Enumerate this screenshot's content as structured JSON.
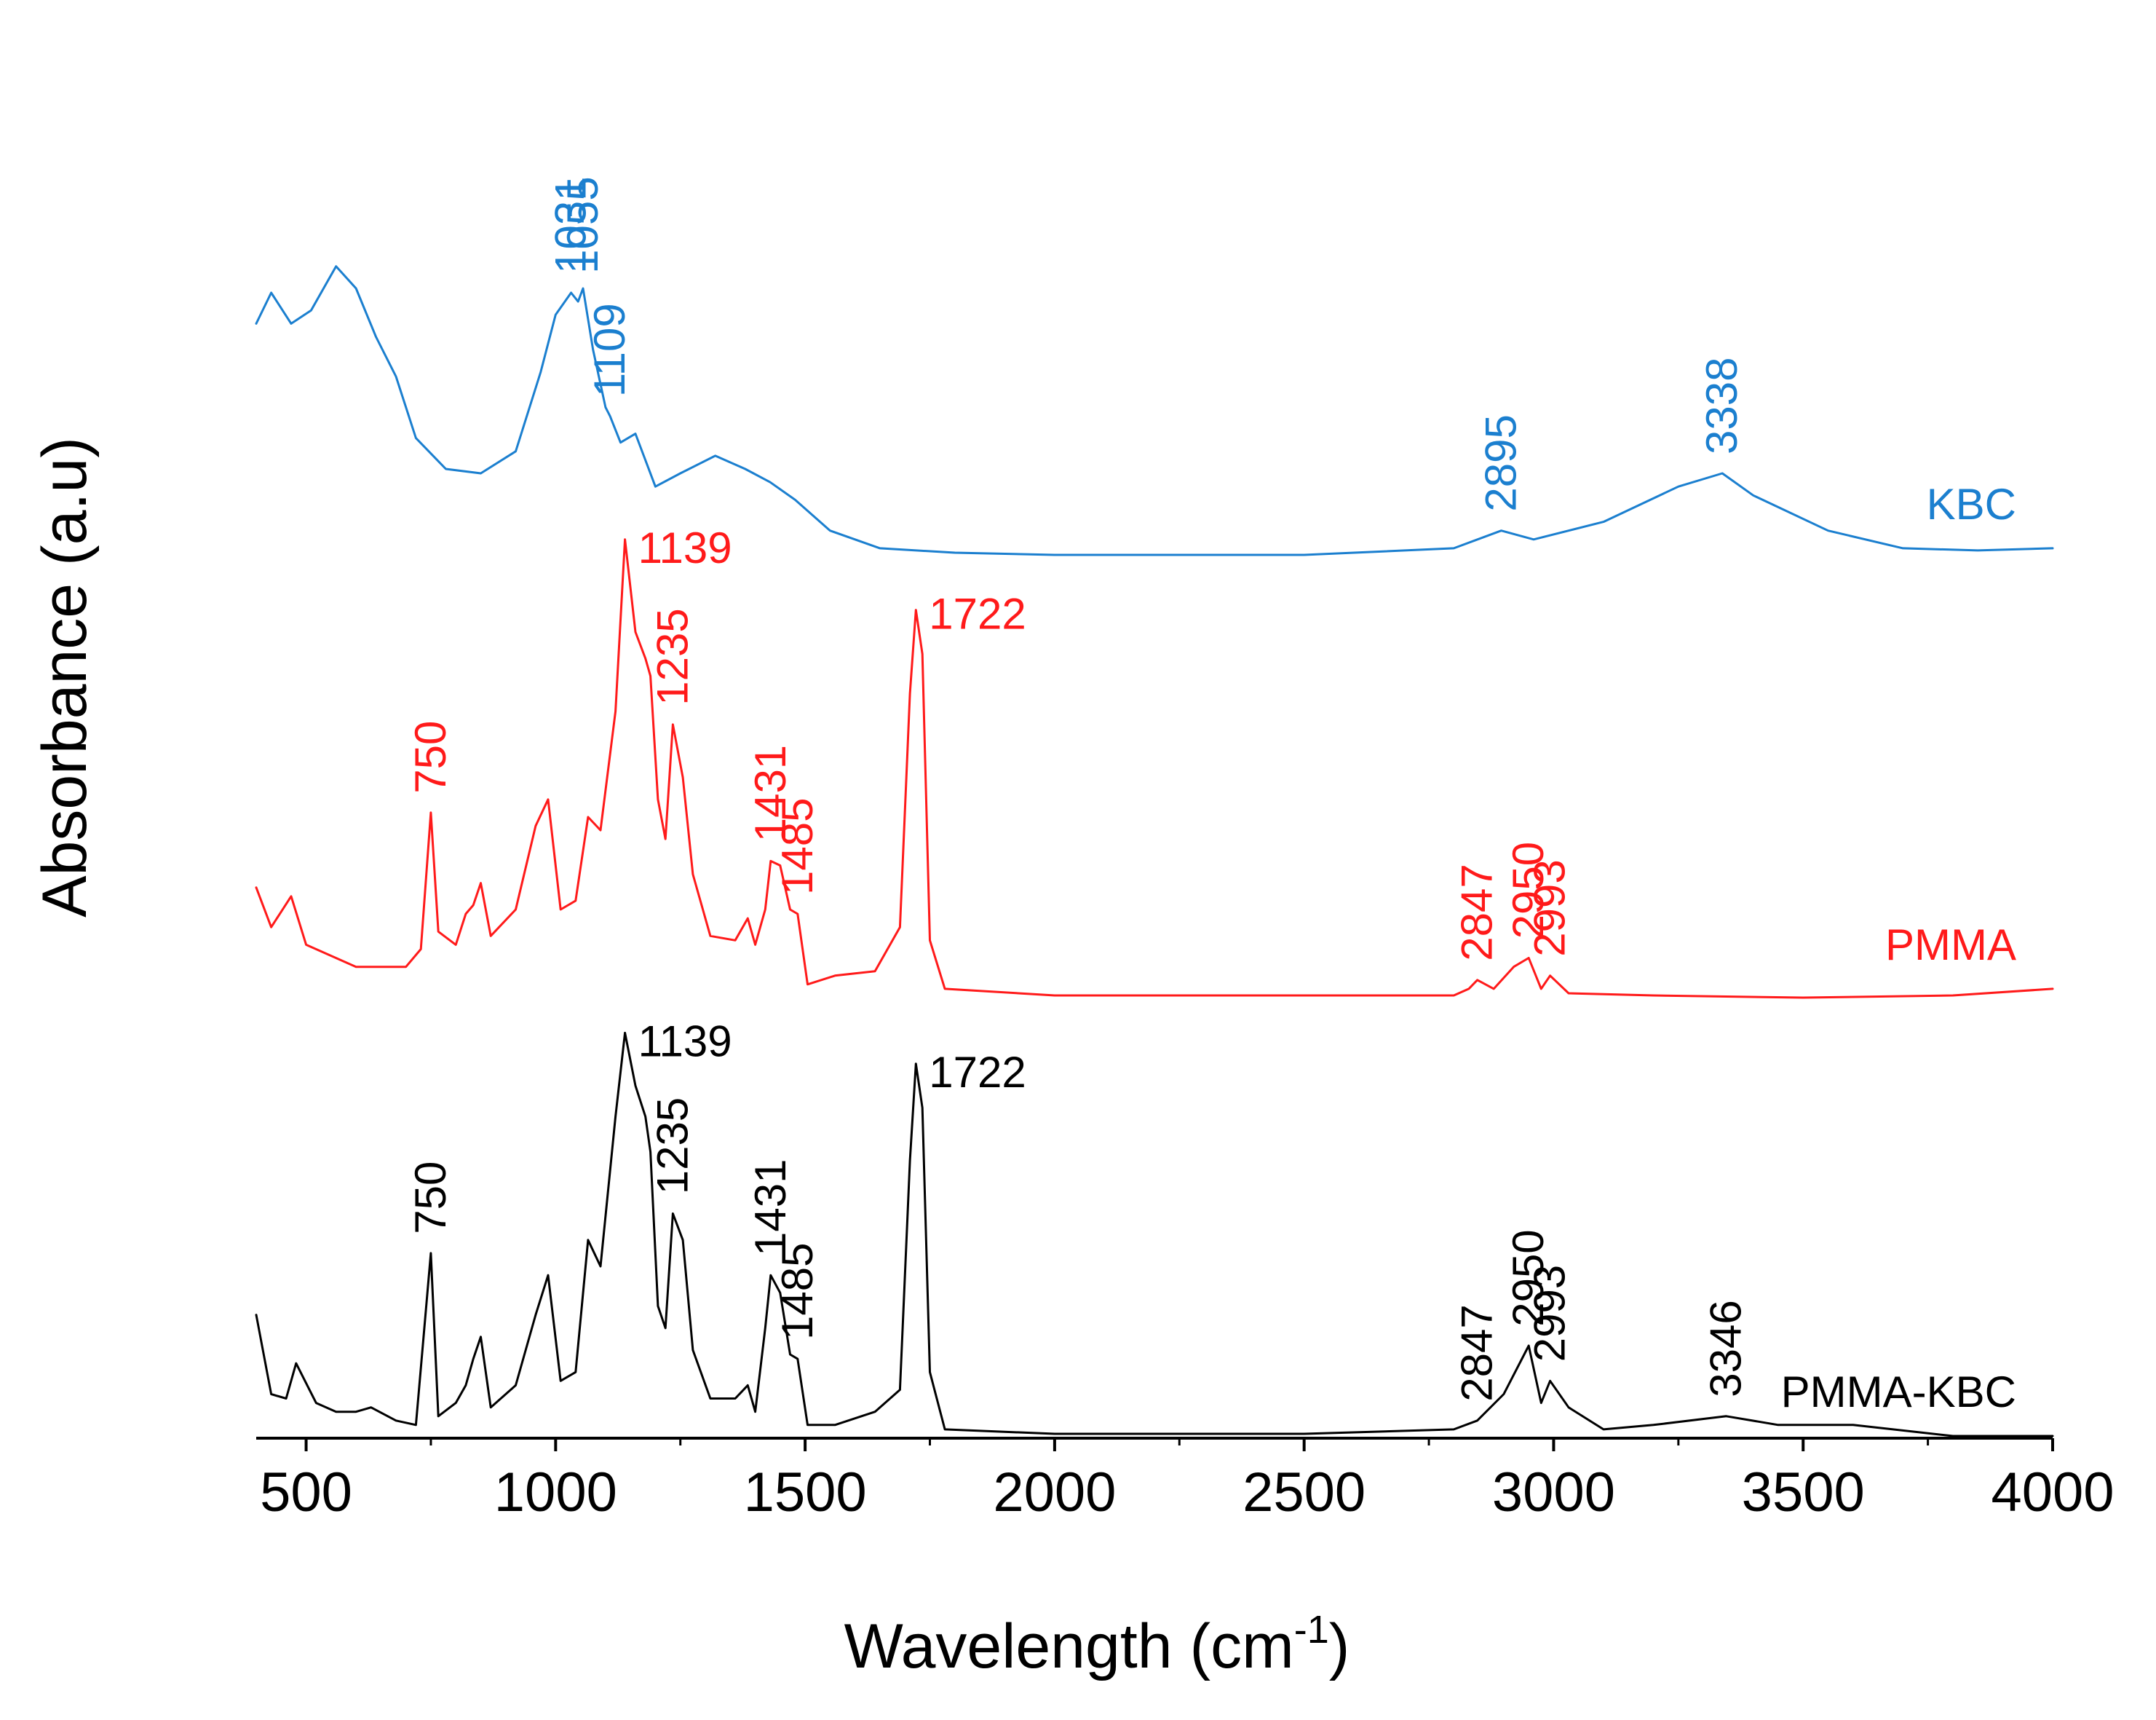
{
  "chart_data": {
    "type": "line",
    "title": "",
    "xlabel": "Wavelength (cm",
    "xlabel_superscript": "-1",
    "xlabel_suffix": ")",
    "ylabel": "Absorbance (a.u)",
    "xlim": [
      400,
      4000
    ],
    "ylim": [
      0,
      3
    ],
    "y_ticks_shown": false,
    "grid": false,
    "legend": "inline labels at right",
    "x_ticks": [
      {
        "value": 500,
        "label": "500"
      },
      {
        "value": 1000,
        "label": "1000"
      },
      {
        "value": 1500,
        "label": "1500"
      },
      {
        "value": 2000,
        "label": "2000"
      },
      {
        "value": 2500,
        "label": "2500"
      },
      {
        "value": 3000,
        "label": "3000"
      },
      {
        "value": 3500,
        "label": "3500"
      },
      {
        "value": 4000,
        "label": "4000"
      }
    ],
    "series": [
      {
        "name": "KBC",
        "label": "KBC",
        "color": "#1b7fcf",
        "points": [
          [
            400,
            2.53
          ],
          [
            430,
            2.6
          ],
          [
            470,
            2.53
          ],
          [
            510,
            2.56
          ],
          [
            560,
            2.66
          ],
          [
            600,
            2.61
          ],
          [
            640,
            2.5
          ],
          [
            680,
            2.41
          ],
          [
            720,
            2.27
          ],
          [
            780,
            2.2
          ],
          [
            850,
            2.19
          ],
          [
            920,
            2.24
          ],
          [
            970,
            2.42
          ],
          [
            1000,
            2.55
          ],
          [
            1031,
            2.6
          ],
          [
            1045,
            2.58
          ],
          [
            1055,
            2.61
          ],
          [
            1075,
            2.47
          ],
          [
            1100,
            2.34
          ],
          [
            1109,
            2.32
          ],
          [
            1130,
            2.26
          ],
          [
            1160,
            2.28
          ],
          [
            1200,
            2.16
          ],
          [
            1250,
            2.19
          ],
          [
            1320,
            2.23
          ],
          [
            1380,
            2.2
          ],
          [
            1430,
            2.17
          ],
          [
            1480,
            2.13
          ],
          [
            1550,
            2.06
          ],
          [
            1650,
            2.02
          ],
          [
            1800,
            2.01
          ],
          [
            2000,
            2.005
          ],
          [
            2500,
            2.005
          ],
          [
            2800,
            2.02
          ],
          [
            2895,
            2.06
          ],
          [
            2960,
            2.04
          ],
          [
            3100,
            2.08
          ],
          [
            3250,
            2.16
          ],
          [
            3338,
            2.19
          ],
          [
            3400,
            2.14
          ],
          [
            3550,
            2.06
          ],
          [
            3700,
            2.02
          ],
          [
            3850,
            2.015
          ],
          [
            4000,
            2.02
          ]
        ]
      },
      {
        "name": "PMMA",
        "label": "PMMA",
        "color": "#ff1a1a",
        "points": [
          [
            400,
            1.25
          ],
          [
            430,
            1.16
          ],
          [
            470,
            1.23
          ],
          [
            500,
            1.12
          ],
          [
            600,
            1.07
          ],
          [
            700,
            1.07
          ],
          [
            730,
            1.11
          ],
          [
            750,
            1.42
          ],
          [
            765,
            1.15
          ],
          [
            800,
            1.12
          ],
          [
            820,
            1.19
          ],
          [
            835,
            1.21
          ],
          [
            850,
            1.26
          ],
          [
            870,
            1.14
          ],
          [
            920,
            1.2
          ],
          [
            960,
            1.39
          ],
          [
            985,
            1.45
          ],
          [
            1010,
            1.2
          ],
          [
            1040,
            1.22
          ],
          [
            1065,
            1.41
          ],
          [
            1090,
            1.38
          ],
          [
            1120,
            1.65
          ],
          [
            1139,
            2.04
          ],
          [
            1160,
            1.83
          ],
          [
            1180,
            1.77
          ],
          [
            1190,
            1.73
          ],
          [
            1205,
            1.45
          ],
          [
            1220,
            1.36
          ],
          [
            1235,
            1.62
          ],
          [
            1255,
            1.5
          ],
          [
            1275,
            1.28
          ],
          [
            1310,
            1.14
          ],
          [
            1360,
            1.13
          ],
          [
            1385,
            1.18
          ],
          [
            1400,
            1.12
          ],
          [
            1420,
            1.2
          ],
          [
            1431,
            1.31
          ],
          [
            1450,
            1.3
          ],
          [
            1470,
            1.2
          ],
          [
            1485,
            1.19
          ],
          [
            1505,
            1.03
          ],
          [
            1560,
            1.05
          ],
          [
            1640,
            1.06
          ],
          [
            1690,
            1.16
          ],
          [
            1710,
            1.69
          ],
          [
            1722,
            1.88
          ],
          [
            1735,
            1.78
          ],
          [
            1750,
            1.13
          ],
          [
            1780,
            1.02
          ],
          [
            2000,
            1.005
          ],
          [
            2500,
            1.005
          ],
          [
            2800,
            1.005
          ],
          [
            2830,
            1.02
          ],
          [
            2847,
            1.04
          ],
          [
            2880,
            1.02
          ],
          [
            2920,
            1.07
          ],
          [
            2950,
            1.09
          ],
          [
            2975,
            1.02
          ],
          [
            2993,
            1.05
          ],
          [
            3030,
            1.01
          ],
          [
            3200,
            1.005
          ],
          [
            3500,
            1.0
          ],
          [
            3800,
            1.005
          ],
          [
            4000,
            1.02
          ]
        ]
      },
      {
        "name": "PMMA-KBC",
        "label": "PMMA-KBC",
        "color": "#000000",
        "points": [
          [
            400,
            0.28
          ],
          [
            430,
            0.1
          ],
          [
            460,
            0.09
          ],
          [
            480,
            0.17
          ],
          [
            520,
            0.08
          ],
          [
            560,
            0.06
          ],
          [
            600,
            0.06
          ],
          [
            630,
            0.07
          ],
          [
            680,
            0.04
          ],
          [
            720,
            0.03
          ],
          [
            750,
            0.42
          ],
          [
            765,
            0.05
          ],
          [
            800,
            0.08
          ],
          [
            820,
            0.12
          ],
          [
            835,
            0.18
          ],
          [
            850,
            0.23
          ],
          [
            870,
            0.07
          ],
          [
            920,
            0.12
          ],
          [
            960,
            0.28
          ],
          [
            985,
            0.37
          ],
          [
            1010,
            0.13
          ],
          [
            1040,
            0.15
          ],
          [
            1065,
            0.45
          ],
          [
            1090,
            0.39
          ],
          [
            1120,
            0.73
          ],
          [
            1139,
            0.92
          ],
          [
            1160,
            0.8
          ],
          [
            1180,
            0.73
          ],
          [
            1190,
            0.65
          ],
          [
            1205,
            0.3
          ],
          [
            1220,
            0.25
          ],
          [
            1235,
            0.51
          ],
          [
            1255,
            0.45
          ],
          [
            1275,
            0.2
          ],
          [
            1310,
            0.09
          ],
          [
            1360,
            0.09
          ],
          [
            1385,
            0.12
          ],
          [
            1400,
            0.06
          ],
          [
            1420,
            0.25
          ],
          [
            1431,
            0.37
          ],
          [
            1450,
            0.33
          ],
          [
            1470,
            0.19
          ],
          [
            1485,
            0.18
          ],
          [
            1505,
            0.03
          ],
          [
            1560,
            0.03
          ],
          [
            1640,
            0.06
          ],
          [
            1690,
            0.11
          ],
          [
            1710,
            0.63
          ],
          [
            1722,
            0.85
          ],
          [
            1735,
            0.75
          ],
          [
            1750,
            0.15
          ],
          [
            1780,
            0.02
          ],
          [
            2000,
            0.01
          ],
          [
            2500,
            0.01
          ],
          [
            2800,
            0.02
          ],
          [
            2847,
            0.04
          ],
          [
            2900,
            0.1
          ],
          [
            2950,
            0.21
          ],
          [
            2975,
            0.08
          ],
          [
            2993,
            0.13
          ],
          [
            3030,
            0.07
          ],
          [
            3100,
            0.02
          ],
          [
            3200,
            0.03
          ],
          [
            3346,
            0.05
          ],
          [
            3450,
            0.03
          ],
          [
            3600,
            0.03
          ],
          [
            3800,
            0.005
          ],
          [
            4000,
            0.005
          ]
        ]
      }
    ],
    "annotations": [
      {
        "series": "KBC",
        "text": "1031",
        "x": 1031,
        "level": 2.62
      },
      {
        "series": "KBC",
        "text": "1055",
        "x": 1055,
        "level": 2.62
      },
      {
        "series": "KBC",
        "text": "1109",
        "x": 1109,
        "level": 2.34
      },
      {
        "series": "KBC",
        "text": "2895",
        "x": 2895,
        "level": 2.08
      },
      {
        "series": "KBC",
        "text": "3338",
        "x": 3338,
        "level": 2.21
      },
      {
        "series": "PMMA",
        "text": "1139",
        "x": 1139,
        "level": 2.02,
        "horizontal": true
      },
      {
        "series": "PMMA",
        "text": "1722",
        "x": 1722,
        "level": 1.87,
        "horizontal": true
      },
      {
        "series": "PMMA",
        "text": "750",
        "x": 750,
        "level": 1.44
      },
      {
        "series": "PMMA",
        "text": "1235",
        "x": 1235,
        "level": 1.64
      },
      {
        "series": "PMMA",
        "text": "1431",
        "x": 1431,
        "level": 1.33
      },
      {
        "series": "PMMA",
        "text": "1485",
        "x": 1485,
        "level": 1.21
      },
      {
        "series": "PMMA",
        "text": "2847",
        "x": 2847,
        "level": 1.06
      },
      {
        "series": "PMMA",
        "text": "2950",
        "x": 2950,
        "level": 1.11
      },
      {
        "series": "PMMA",
        "text": "2993",
        "x": 2993,
        "level": 1.07
      },
      {
        "series": "PMMA-KBC",
        "text": "1139",
        "x": 1139,
        "level": 0.9,
        "horizontal": true
      },
      {
        "series": "PMMA-KBC",
        "text": "1722",
        "x": 1722,
        "level": 0.83,
        "horizontal": true
      },
      {
        "series": "PMMA-KBC",
        "text": "750",
        "x": 750,
        "level": 0.44
      },
      {
        "series": "PMMA-KBC",
        "text": "1235",
        "x": 1235,
        "level": 0.53
      },
      {
        "series": "PMMA-KBC",
        "text": "1431",
        "x": 1431,
        "level": 0.39
      },
      {
        "series": "PMMA-KBC",
        "text": "1485",
        "x": 1485,
        "level": 0.2
      },
      {
        "series": "PMMA-KBC",
        "text": "2847",
        "x": 2847,
        "level": 0.06
      },
      {
        "series": "PMMA-KBC",
        "text": "2950",
        "x": 2950,
        "level": 0.23
      },
      {
        "series": "PMMA-KBC",
        "text": "2993",
        "x": 2993,
        "level": 0.15
      },
      {
        "series": "PMMA-KBC",
        "text": "3346",
        "x": 3346,
        "level": 0.07
      }
    ]
  }
}
